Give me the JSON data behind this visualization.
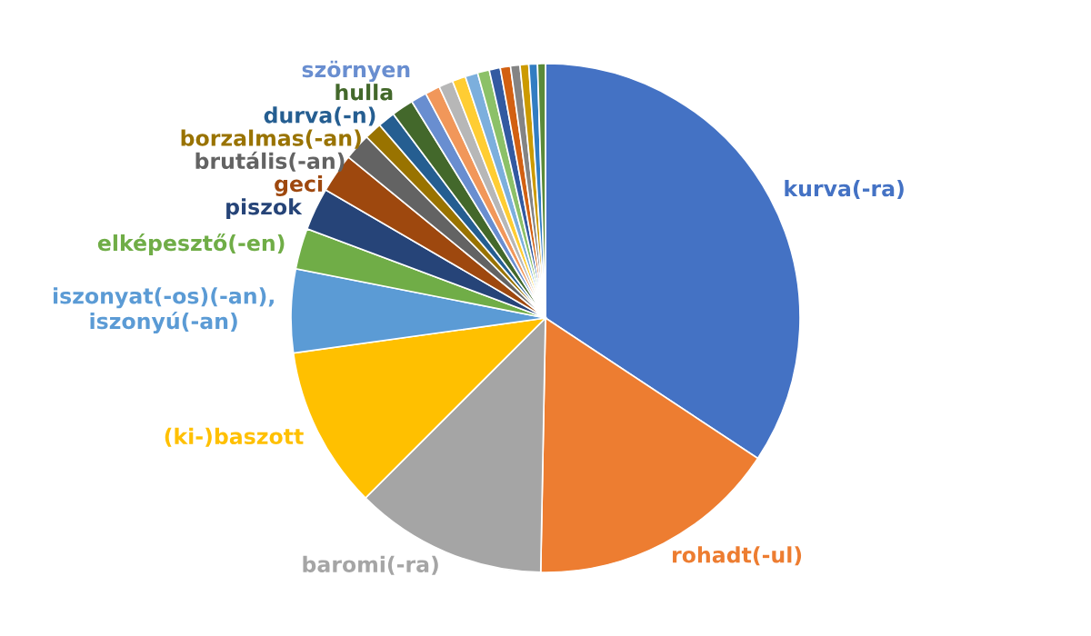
{
  "chart_data": {
    "type": "pie",
    "categories": [
      "kurva(-ra)",
      "rohadt(-ul)",
      "baromi(-ra)",
      "(ki-)baszott",
      "iszonyat(-os)(-an), iszonyú(-an)",
      "elképesztő(-en)",
      "piszok",
      "geci",
      "brutális(-an)",
      "borzalmas(-an)",
      "durva(-n)",
      "hulla",
      "szörnyen",
      null,
      null,
      null,
      null,
      null,
      null,
      null,
      null,
      null,
      null,
      null
    ],
    "values": [
      34.3,
      16,
      12.2,
      10.3,
      5.3,
      2.6,
      2.7,
      2.5,
      1.7,
      1.1,
      1.1,
      1.4,
      1.0,
      0.95,
      0.9,
      0.85,
      0.8,
      0.75,
      0.7,
      0.65,
      0.6,
      0.55,
      0.55,
      0.5
    ],
    "colors": [
      "#4472c4",
      "#ed7d31",
      "#a5a5a5",
      "#ffc000",
      "#5b9bd5",
      "#70ad47",
      "#264478",
      "#9e480e",
      "#636363",
      "#997300",
      "#255e91",
      "#43682b",
      "#698ed0",
      "#f1975a",
      "#b7b7b7",
      "#ffcd33",
      "#7cafdd",
      "#8cc168",
      "#335aa1",
      "#d26012",
      "#848484",
      "#cc9a00",
      "#327dc2",
      "#5a8a39"
    ]
  }
}
